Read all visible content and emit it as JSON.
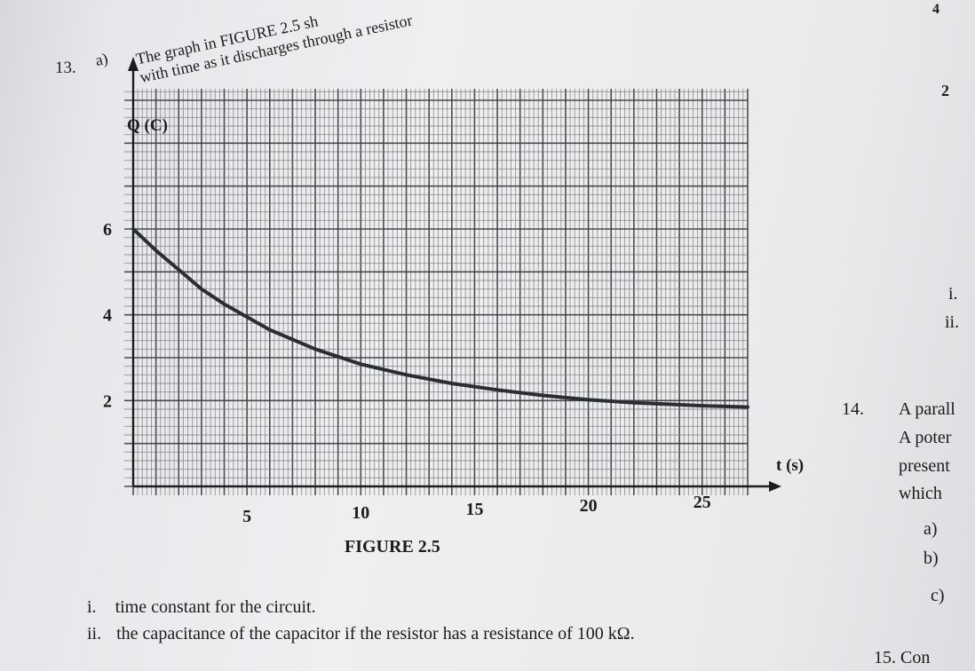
{
  "question": {
    "number": "13.",
    "part": "a)",
    "stem_line1": "The graph in FIGURE 2.5 sh",
    "stem_line2": "with time as it discharges through a resistor",
    "figure_label": "FIGURE 2.5",
    "subparts": [
      {
        "label": "i.",
        "text": "time constant for the circuit."
      },
      {
        "label": "ii.",
        "text": "the capacitance of the capacitor if the resistor has a resistance of 100 kΩ."
      }
    ]
  },
  "right_column": {
    "page_number": "4",
    "mark": "2",
    "items": [
      "i.",
      "ii."
    ],
    "q14_number": "14.",
    "q14_lines": [
      "A parall",
      "A poter",
      "present",
      "which"
    ],
    "q14_parts": [
      "a)",
      "b)",
      "c)"
    ],
    "q15": "15.  Con"
  },
  "chart_data": {
    "type": "line",
    "ylabel": "Q (C)",
    "xlabel": "t (s)",
    "x_ticks": [
      "5",
      "10",
      "15",
      "20",
      "25"
    ],
    "y_ticks": [
      "2",
      "4",
      "6"
    ],
    "xlim": [
      0,
      27
    ],
    "ylim": [
      0,
      7
    ],
    "series": [
      {
        "x": [
          0,
          1,
          2,
          3,
          4,
          5,
          6,
          8,
          10,
          12,
          14,
          16,
          18,
          20,
          22,
          25,
          27
        ],
        "y": [
          6.0,
          5.5,
          5.05,
          4.6,
          4.25,
          3.95,
          3.65,
          3.2,
          2.85,
          2.6,
          2.4,
          2.25,
          2.12,
          2.02,
          1.95,
          1.88,
          1.85
        ]
      }
    ],
    "grid": true
  }
}
